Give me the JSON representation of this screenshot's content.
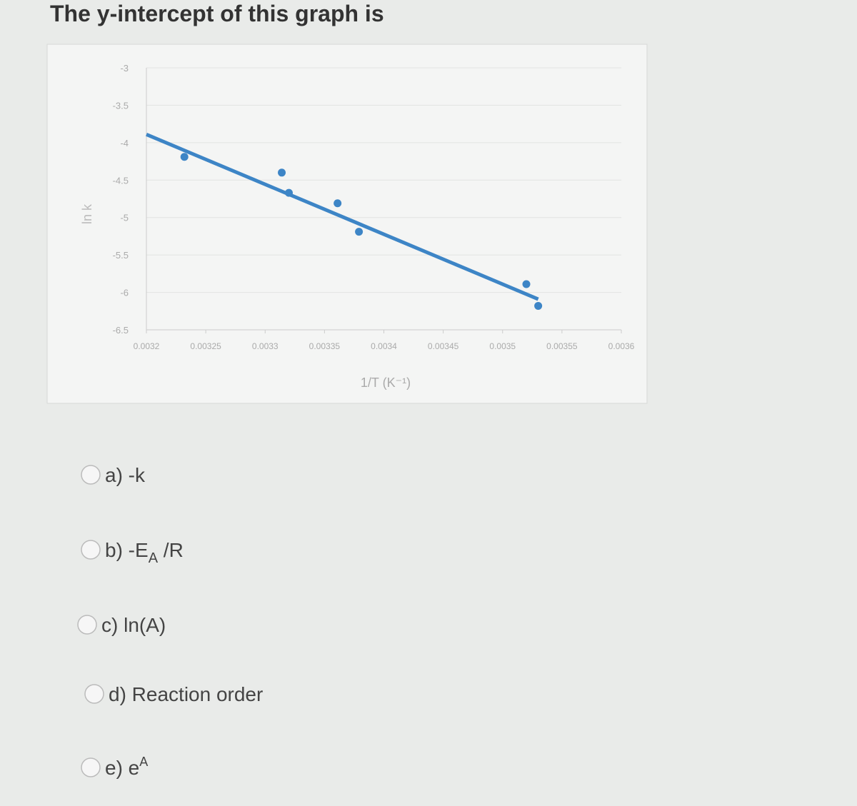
{
  "question": "The y-intercept of this graph is",
  "chart_data": {
    "type": "scatter",
    "x_label": "1/T (K⁻¹)",
    "y_label": "ln k",
    "xlim": [
      0.0032,
      0.0036
    ],
    "xticks": [
      0.0032,
      0.00325,
      0.0033,
      0.00335,
      0.0034,
      0.00345,
      0.0035,
      0.00355,
      0.0036
    ],
    "ylim": [
      -6.5,
      -3
    ],
    "yticks": [
      -3,
      -3.5,
      -4,
      -4.5,
      -5,
      -5.5,
      -6,
      -6.5
    ],
    "series": [
      {
        "color": "#3d85c6",
        "x": [
          0.003232,
          0.003314,
          0.00332,
          0.003361,
          0.003379,
          0.00352,
          0.00353
        ],
        "values": [
          -4.19,
          -4.4,
          -4.67,
          -4.81,
          -5.19,
          -5.89,
          -6.18
        ]
      }
    ],
    "trendline": {
      "color": "#3d85c6",
      "x": [
        0.0032,
        0.00353
      ],
      "values": [
        -3.89,
        -6.09
      ]
    }
  },
  "options": [
    {
      "text": "a) -k"
    },
    {
      "text": "b) -E",
      "sub": "A",
      "after": " /R"
    },
    {
      "text": "c) ln(A)"
    },
    {
      "text": "d) Reaction order"
    },
    {
      "text": "e) e",
      "sup": "A"
    }
  ]
}
